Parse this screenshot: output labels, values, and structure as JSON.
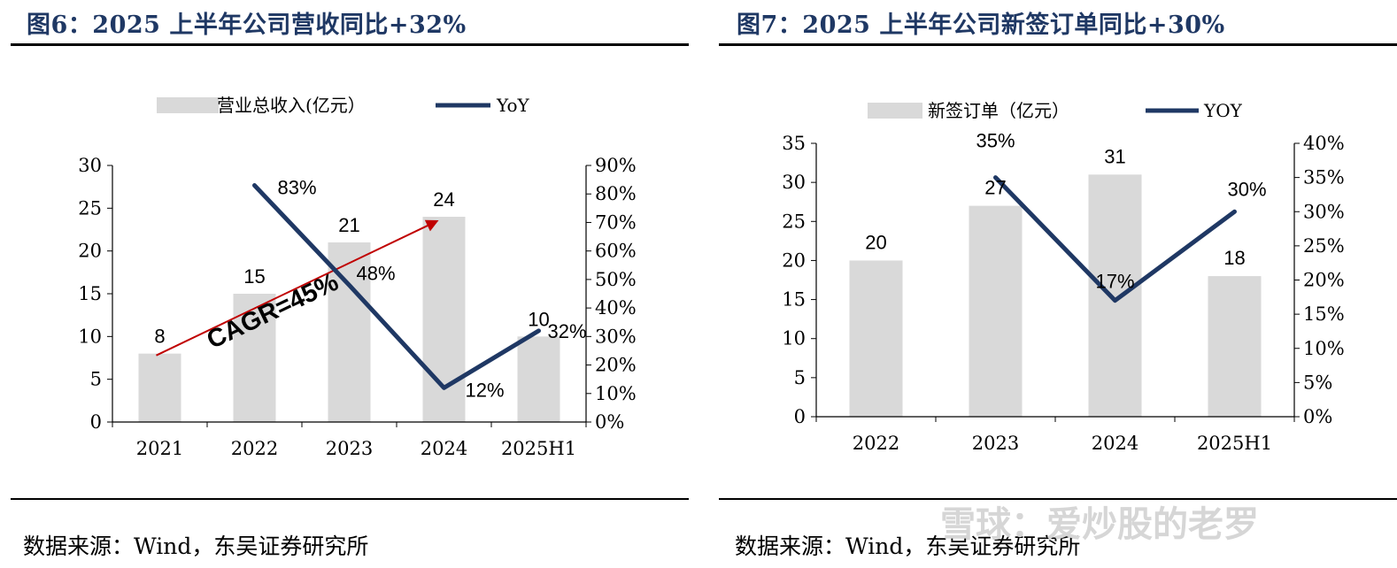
{
  "panels": {
    "left": {
      "title": "图6：2025 上半年公司营收同比+32%",
      "source": "数据来源：Wind，东吴证券研究所"
    },
    "right": {
      "title": "图7：2025 上半年公司新签订单同比+30%",
      "source": "数据来源：Wind，东吴证券研究所"
    }
  },
  "watermark": "雪球：爱炒股的老罗",
  "colors": {
    "bar": "#d9d9d9",
    "line": "#1f3864",
    "arrow": "#c00000",
    "title": "#1f3864"
  },
  "chart_data": [
    {
      "type": "bar+line",
      "categories": [
        "2021",
        "2022",
        "2023",
        "2024",
        "2025H1"
      ],
      "series": [
        {
          "name": "营业总收入(亿元）",
          "axis": "left",
          "type": "bar",
          "values": [
            8,
            15,
            21,
            24,
            10
          ],
          "labels": [
            "8",
            "15",
            "21",
            "24",
            "10"
          ]
        },
        {
          "name": "YoY",
          "axis": "right",
          "type": "line",
          "values": [
            null,
            83,
            48,
            12,
            32
          ],
          "labels": [
            "",
            "83%",
            "48%",
            "12%",
            "32%"
          ]
        }
      ],
      "left_axis": {
        "ylim": [
          0,
          30
        ],
        "ticks": [
          "0",
          "5",
          "10",
          "15",
          "20",
          "25",
          "30"
        ]
      },
      "right_axis": {
        "ylim": [
          0,
          90
        ],
        "ticks": [
          "0%",
          "10%",
          "20%",
          "30%",
          "40%",
          "50%",
          "60%",
          "70%",
          "80%",
          "90%"
        ]
      },
      "annotation": {
        "text": "CAGR=45%",
        "from_category": "2021",
        "to_category": "2024",
        "from_value": 8,
        "to_value": 24
      },
      "legend": "top"
    },
    {
      "type": "bar+line",
      "categories": [
        "2022",
        "2023",
        "2024",
        "2025H1"
      ],
      "series": [
        {
          "name": "新签订单（亿元）",
          "axis": "left",
          "type": "bar",
          "values": [
            20,
            27,
            31,
            18
          ],
          "labels": [
            "20",
            "27",
            "31",
            "18"
          ]
        },
        {
          "name": "YOY",
          "axis": "right",
          "type": "line",
          "values": [
            null,
            35,
            17,
            30
          ],
          "labels": [
            "",
            "35%",
            "17%",
            "30%"
          ]
        }
      ],
      "left_axis": {
        "ylim": [
          0,
          35
        ],
        "ticks": [
          "0",
          "5",
          "10",
          "15",
          "20",
          "25",
          "30",
          "35"
        ]
      },
      "right_axis": {
        "ylim": [
          0,
          40
        ],
        "ticks": [
          "0%",
          "5%",
          "10%",
          "15%",
          "20%",
          "25%",
          "30%",
          "35%",
          "40%"
        ]
      },
      "legend": "top"
    }
  ]
}
